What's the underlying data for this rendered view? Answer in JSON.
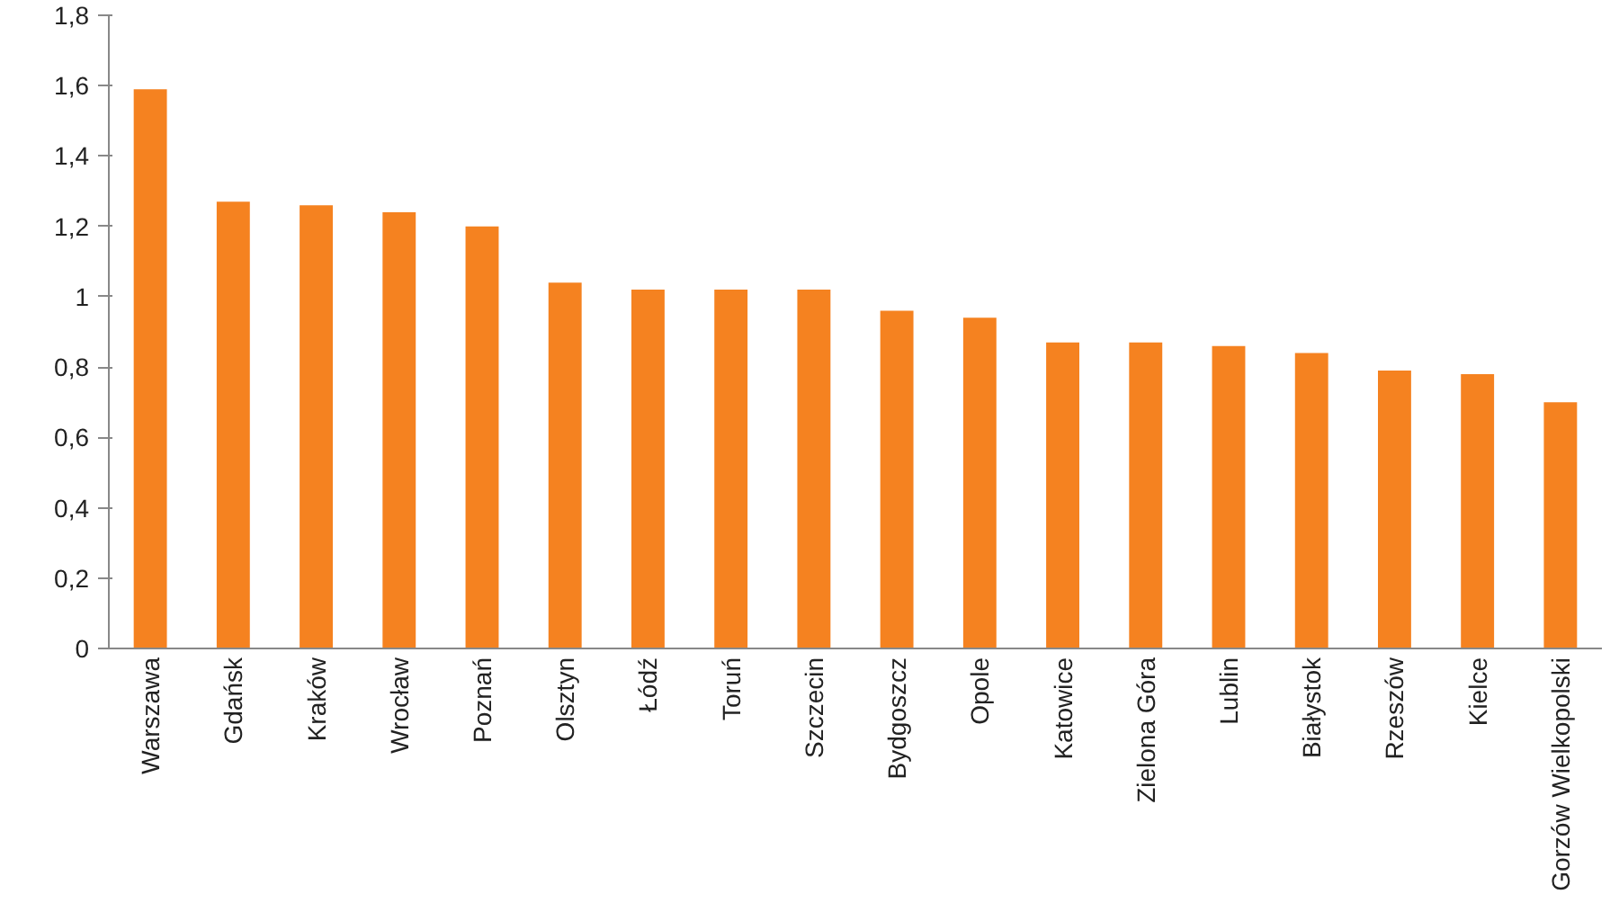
{
  "chart_data": {
    "type": "bar",
    "categories": [
      "Warszawa",
      "Gdańsk",
      "Kraków",
      "Wrocław",
      "Poznań",
      "Olsztyn",
      "Łódź",
      "Toruń",
      "Szczecin",
      "Bydgoszcz",
      "Opole",
      "Katowice",
      "Zielona Góra",
      "Lublin",
      "Białystok",
      "Rzeszów",
      "Kielce",
      "Gorzów Wielkopolski"
    ],
    "values": [
      1.59,
      1.27,
      1.26,
      1.24,
      1.2,
      1.04,
      1.02,
      1.02,
      1.02,
      0.96,
      0.94,
      0.87,
      0.87,
      0.86,
      0.84,
      0.79,
      0.78,
      0.7
    ],
    "color": "#f58220",
    "ylim": [
      0,
      1.8
    ],
    "yticks": [
      {
        "value": 0,
        "label": "0"
      },
      {
        "value": 0.2,
        "label": "0,2"
      },
      {
        "value": 0.4,
        "label": "0,4"
      },
      {
        "value": 0.6,
        "label": "0,6"
      },
      {
        "value": 0.8,
        "label": "0,8"
      },
      {
        "value": 1,
        "label": "1"
      },
      {
        "value": 1.2,
        "label": "1,2"
      },
      {
        "value": 1.4,
        "label": "1,4"
      },
      {
        "value": 1.6,
        "label": "1,6"
      },
      {
        "value": 1.8,
        "label": "1,8"
      }
    ],
    "grid": false
  }
}
